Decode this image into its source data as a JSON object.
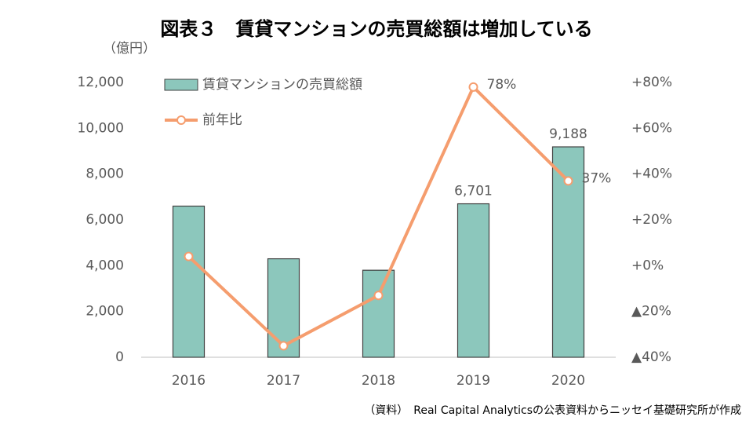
{
  "chart_data": {
    "type": "bar",
    "title": "図表３　賃貸マンションの売買総額は増加している",
    "y_label": "（億円）",
    "source": "（資料）　Real Capital Analyticsの公表資料からニッセイ基礎研究所が作成",
    "categories": [
      "2016",
      "2017",
      "2018",
      "2019",
      "2020"
    ],
    "series": [
      {
        "name": "賃貸マンションの売買総額",
        "type": "bar",
        "color": "#8cc7bc",
        "values": [
          6600,
          4300,
          3800,
          6701,
          9188
        ],
        "value_labels": [
          null,
          null,
          null,
          "6,701",
          "9,188"
        ]
      },
      {
        "name": "前年比",
        "type": "line",
        "axis": "y2",
        "color": "#f59d6e",
        "values": [
          4,
          -35,
          -13,
          78,
          37
        ],
        "value_labels": [
          null,
          null,
          null,
          "78%",
          "37%"
        ]
      }
    ],
    "ylim": [
      0,
      12000
    ],
    "yticks": [
      0,
      {
        "value": 2000,
        "label": "2,000"
      },
      {
        "value": 4000,
        "label": "4,000"
      },
      {
        "value": 6000,
        "label": "6,000"
      },
      {
        "value": 8000,
        "label": "8,000"
      },
      {
        "value": 10000,
        "label": "10,000"
      },
      {
        "value": 12000,
        "label": "12,000"
      }
    ],
    "y2lim": [
      -40,
      80
    ],
    "y2ticks": [
      {
        "value": -40,
        "label": "▲40%"
      },
      {
        "value": -20,
        "label": "▲20%"
      },
      {
        "value": 0,
        "label": "+0%"
      },
      {
        "value": 20,
        "label": "+20%"
      },
      {
        "value": 40,
        "label": "+40%"
      },
      {
        "value": 60,
        "label": "+60%"
      },
      {
        "value": 80,
        "label": "+80%"
      }
    ],
    "grid": false,
    "legend": "upper left"
  }
}
